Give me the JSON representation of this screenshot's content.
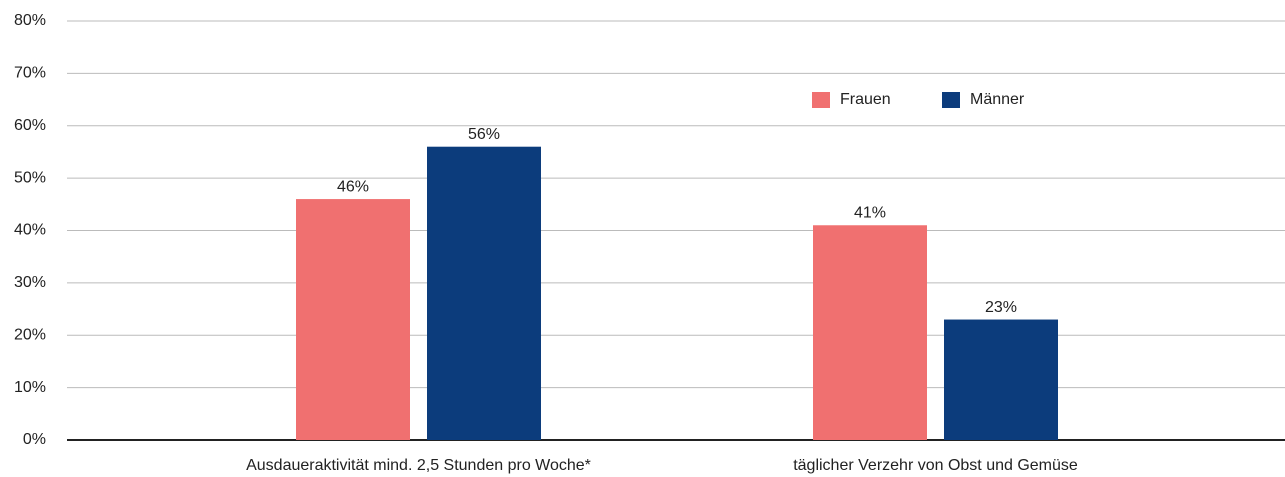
{
  "chart_data": {
    "type": "bar",
    "categories": [
      "Ausdaueraktivität mind. 2,5 Stunden pro Woche*",
      "täglicher Verzehr von Obst und Gemüse"
    ],
    "series": [
      {
        "name": "Frauen",
        "color": "#f07070",
        "values": [
          46,
          41
        ],
        "value_labels": [
          "46%",
          "41%"
        ]
      },
      {
        "name": "Männer",
        "color": "#0c3c7c",
        "values": [
          56,
          23
        ],
        "value_labels": [
          "56%",
          "23%"
        ]
      }
    ],
    "ylim": [
      0,
      80
    ],
    "yticks": [
      {
        "value": 0,
        "label": "0%"
      },
      {
        "value": 10,
        "label": "10%"
      },
      {
        "value": 20,
        "label": "20%"
      },
      {
        "value": 30,
        "label": "30%"
      },
      {
        "value": 40,
        "label": "40%"
      },
      {
        "value": 50,
        "label": "50%"
      },
      {
        "value": 60,
        "label": "60%"
      },
      {
        "value": 70,
        "label": "70%"
      },
      {
        "value": 80,
        "label": "80%"
      }
    ],
    "grid": true,
    "legend": "upper right"
  }
}
